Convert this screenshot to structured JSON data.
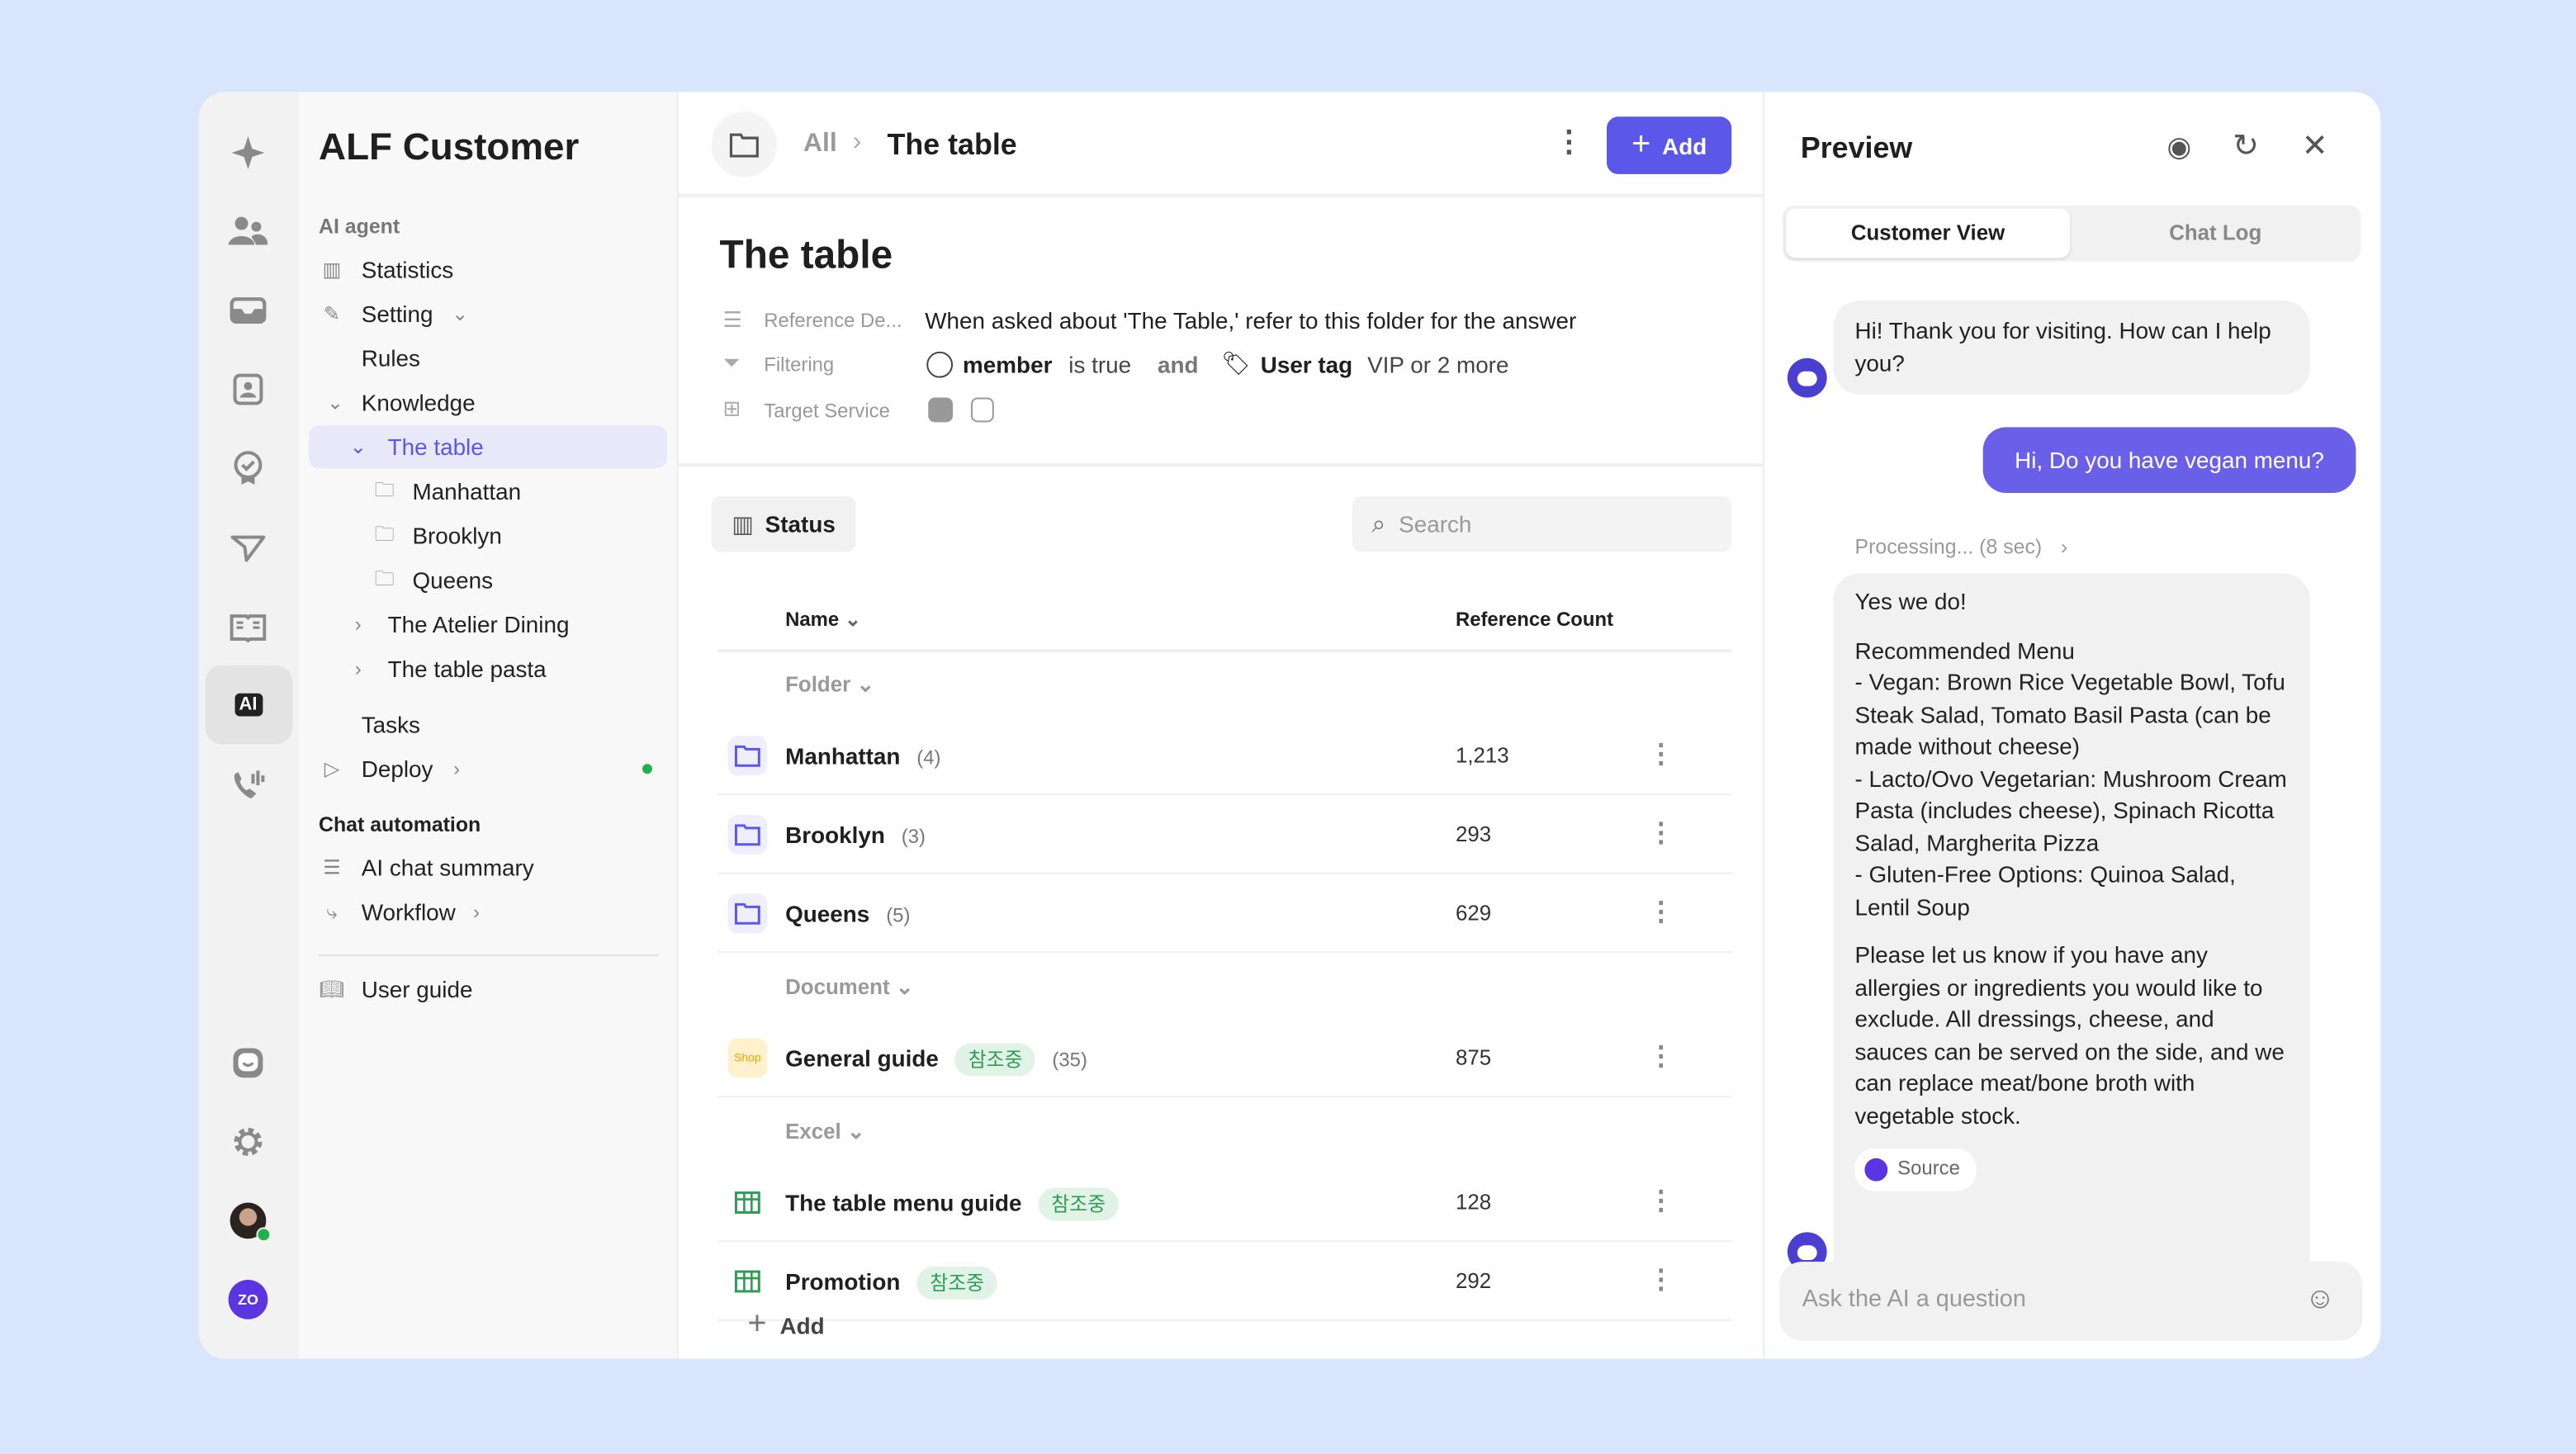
{
  "rail": {
    "icons": [
      "sparkle-icon",
      "users-icon",
      "inbox-icon",
      "contact-icon",
      "badge-icon",
      "send-icon",
      "book-icon",
      "ai-icon",
      "phone-icon",
      "chat-bot-icon",
      "gear-icon",
      "avatar",
      "zo-logo"
    ],
    "ai_label": "AI",
    "logo_text": "ZO"
  },
  "sidebar": {
    "title": "ALF Customer",
    "section1": "AI agent",
    "items": [
      {
        "label": "Statistics"
      },
      {
        "label": "Setting"
      },
      {
        "label": "Rules"
      },
      {
        "label": "Knowledge"
      },
      {
        "label": "The table"
      },
      {
        "label": "Manhattan"
      },
      {
        "label": "Brooklyn"
      },
      {
        "label": "Queens"
      },
      {
        "label": "The Atelier Dining"
      },
      {
        "label": "The table pasta"
      },
      {
        "label": "Tasks"
      },
      {
        "label": "Deploy"
      }
    ],
    "section2": "Chat automation",
    "items2": [
      {
        "label": "AI chat summary"
      },
      {
        "label": "Workflow"
      }
    ],
    "user_guide": "User guide"
  },
  "header": {
    "breadcrumb_root": "All",
    "breadcrumb_current": "The table",
    "add_label": "Add"
  },
  "page": {
    "title": "The table",
    "meta": {
      "ref_label": "Reference De...",
      "ref_value": "When asked about 'The Table,' refer to this folder for the answer",
      "filter_label": "Filtering",
      "filter_member": "member",
      "filter_is": "is true",
      "filter_and": "and",
      "filter_tag": "User tag",
      "filter_tag_value": "VIP or 2 more",
      "target_label": "Target Service"
    },
    "status_label": "Status",
    "search_placeholder": "Search",
    "columns": {
      "name": "Name",
      "ref": "Reference Count"
    },
    "groups": [
      {
        "label": "Folder",
        "rows": [
          {
            "name": "Manhattan",
            "count": "(4)",
            "ref": "1,213",
            "type": "folder"
          },
          {
            "name": "Brooklyn",
            "count": "(3)",
            "ref": "293",
            "type": "folder"
          },
          {
            "name": "Queens",
            "count": "(5)",
            "ref": "629",
            "type": "folder"
          }
        ]
      },
      {
        "label": "Document",
        "rows": [
          {
            "name": "General guide",
            "badge": "참조중",
            "count": "(35)",
            "ref": "875",
            "type": "shop",
            "icon_text": "Shop"
          }
        ]
      },
      {
        "label": "Excel",
        "rows": [
          {
            "name": "The table menu guide",
            "badge": "참조중",
            "ref": "128",
            "type": "excel"
          },
          {
            "name": "Promotion",
            "badge": "참조중",
            "ref": "292",
            "type": "excel"
          }
        ]
      }
    ],
    "add_label": "Add"
  },
  "preview": {
    "title": "Preview",
    "tabs": [
      "Customer View",
      "Chat Log"
    ],
    "msg1": "Hi! Thank you for visiting. How can I help you?",
    "msg2": "Hi, Do you have vegan menu?",
    "processing": "Processing... (8 sec)",
    "answer": [
      "Yes we do!",
      "Recommended Menu\n- Vegan: Brown Rice Vegetable Bowl, Tofu Steak Salad, Tomato Basil Pasta (can be made without cheese)\n- Lacto/Ovo Vegetarian: Mushroom Cream Pasta (includes cheese), Spinach Ricotta Salad, Margherita Pizza\n- Gluten-Free Options: Quinoa Salad, Lentil Soup",
      "Please let us know if you have any allergies or ingredients you would like to exclude. All dressings, cheese, and sauces can be served on the side, and we can replace meat/bone broth with vegetable stock."
    ],
    "source": "Source",
    "input_placeholder": "Ask the AI a question"
  },
  "colors": {
    "accent": "#5b57e8",
    "background": "#d9e5fc",
    "badge_green": "#2f9b55",
    "online": "#22b04b"
  }
}
